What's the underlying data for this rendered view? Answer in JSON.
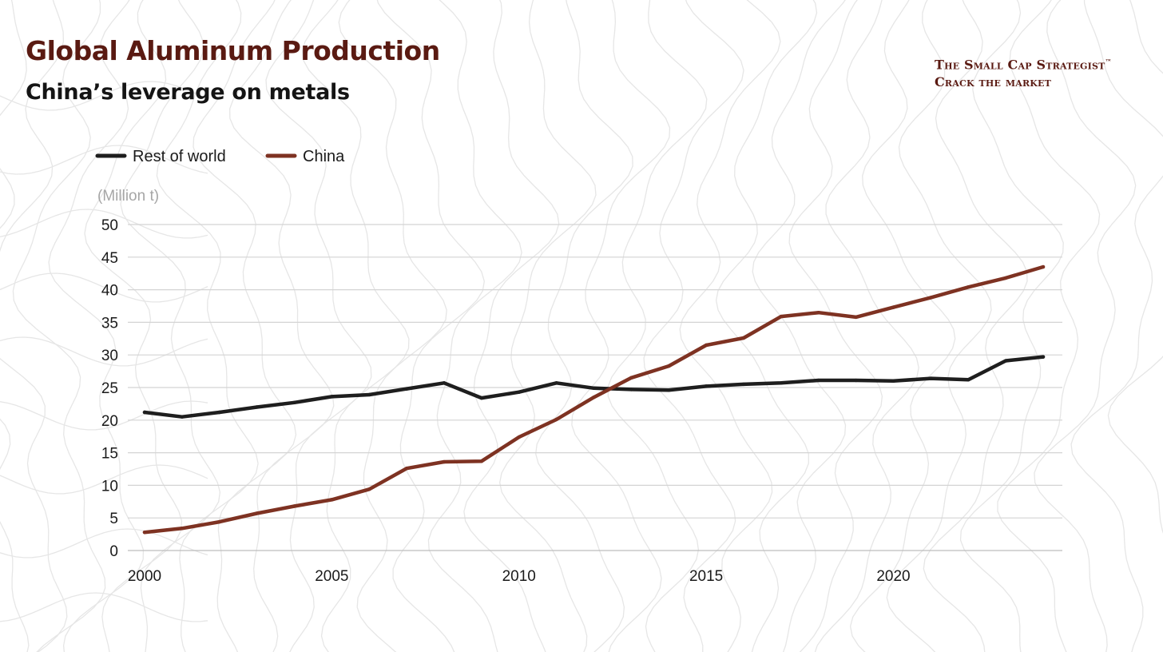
{
  "header": {
    "title": "Global Aluminum Production",
    "subtitle": "China’s leverage on metals"
  },
  "brand": {
    "line1": "The Small Cap Strategist",
    "trademark": "™",
    "line2": "Crack the market"
  },
  "colors": {
    "title": "#5a1a12",
    "brand": "#5a1a12",
    "rest_of_world": "#1e1e1e",
    "china": "#7e3222",
    "grid": "#d4d4d4",
    "unit_label": "#a6a6a6",
    "tick_label": "#1a1a1a"
  },
  "chart_data": {
    "type": "line",
    "unit_label": "(Million t)",
    "legend_position": "top-left",
    "grid": true,
    "x": [
      2000,
      2001,
      2002,
      2003,
      2004,
      2005,
      2006,
      2007,
      2008,
      2009,
      2010,
      2011,
      2012,
      2013,
      2014,
      2015,
      2016,
      2017,
      2018,
      2019,
      2020,
      2021,
      2022,
      2023,
      2024
    ],
    "xlim": [
      2000,
      2024
    ],
    "x_ticks": [
      2000,
      2005,
      2010,
      2015,
      2020
    ],
    "ylim": [
      0,
      50
    ],
    "y_ticks": [
      0,
      5,
      10,
      15,
      20,
      25,
      30,
      35,
      40,
      45,
      50
    ],
    "series": [
      {
        "name": "Rest of world",
        "color_key": "rest_of_world",
        "values": [
          21.2,
          20.5,
          21.2,
          22.0,
          22.7,
          23.6,
          23.9,
          24.8,
          25.7,
          23.4,
          24.3,
          25.7,
          24.9,
          24.7,
          24.6,
          25.2,
          25.5,
          25.7,
          26.1,
          26.1,
          26.0,
          26.4,
          26.2,
          29.1,
          29.7
        ]
      },
      {
        "name": "China",
        "color_key": "china",
        "values": [
          2.8,
          3.4,
          4.4,
          5.7,
          6.8,
          7.8,
          9.4,
          12.6,
          13.6,
          13.7,
          17.4,
          20.1,
          23.5,
          26.5,
          28.3,
          31.5,
          32.6,
          35.9,
          36.5,
          35.8,
          37.3,
          38.8,
          40.4,
          41.8,
          43.5
        ]
      }
    ]
  }
}
